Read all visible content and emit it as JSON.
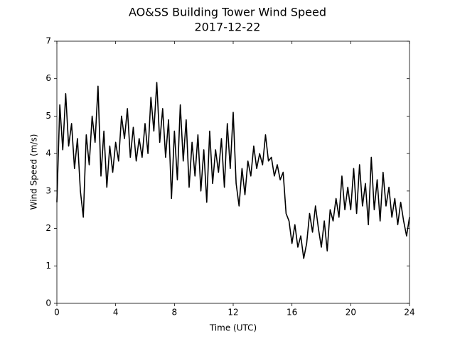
{
  "chart_data": {
    "type": "line",
    "title": "AO&SS Building Tower Wind Speed",
    "subtitle": "2017-12-22",
    "x_label": "Time (UTC)",
    "y_label": "Wind Speed (m/s)",
    "xlim": [
      0,
      24
    ],
    "xticks": [
      0,
      4,
      8,
      12,
      16,
      20,
      24
    ],
    "ylim": [
      0,
      7
    ],
    "yticks": [
      0,
      1,
      2,
      3,
      4,
      5,
      6,
      7
    ],
    "grid": false,
    "x": [
      0,
      0.2,
      0.4,
      0.6,
      0.8,
      1,
      1.2,
      1.4,
      1.6,
      1.8,
      2,
      2.2,
      2.4,
      2.6,
      2.8,
      3,
      3.2,
      3.4,
      3.6,
      3.8,
      4,
      4.2,
      4.4,
      4.6,
      4.8,
      5,
      5.2,
      5.4,
      5.6,
      5.8,
      6,
      6.2,
      6.4,
      6.6,
      6.8,
      7,
      7.2,
      7.4,
      7.6,
      7.8,
      8,
      8.2,
      8.4,
      8.6,
      8.8,
      9,
      9.2,
      9.4,
      9.6,
      9.8,
      10,
      10.2,
      10.4,
      10.6,
      10.8,
      11,
      11.2,
      11.4,
      11.6,
      11.8,
      12,
      12.2,
      12.4,
      12.6,
      12.8,
      13,
      13.2,
      13.4,
      13.6,
      13.8,
      14,
      14.2,
      14.4,
      14.6,
      14.8,
      15,
      15.2,
      15.4,
      15.6,
      15.8,
      16,
      16.2,
      16.4,
      16.6,
      16.8,
      17,
      17.2,
      17.4,
      17.6,
      17.8,
      18,
      18.2,
      18.4,
      18.6,
      18.8,
      19,
      19.2,
      19.4,
      19.6,
      19.8,
      20,
      20.2,
      20.4,
      20.6,
      20.8,
      21,
      21.2,
      21.4,
      21.6,
      21.8,
      22,
      22.2,
      22.4,
      22.6,
      22.8,
      23,
      23.2,
      23.4,
      23.6,
      23.8,
      24
    ],
    "series": [
      {
        "color": "#000000",
        "values": [
          2.7,
          5.3,
          4.1,
          5.6,
          4.2,
          4.8,
          3.6,
          4.4,
          3.0,
          2.3,
          4.5,
          3.7,
          5.0,
          4.3,
          5.8,
          3.4,
          4.6,
          3.1,
          4.2,
          3.5,
          4.3,
          3.8,
          5.0,
          4.4,
          5.2,
          3.9,
          4.7,
          3.8,
          4.4,
          3.9,
          4.8,
          4.0,
          5.5,
          4.6,
          5.9,
          4.3,
          5.2,
          3.9,
          4.9,
          2.8,
          4.6,
          3.3,
          5.3,
          3.8,
          4.9,
          3.1,
          4.3,
          3.4,
          4.5,
          3.0,
          4.1,
          2.7,
          4.6,
          3.2,
          4.1,
          3.5,
          4.4,
          3.1,
          4.8,
          3.6,
          5.1,
          3.2,
          2.6,
          3.6,
          2.9,
          3.8,
          3.4,
          4.2,
          3.6,
          4.0,
          3.7,
          4.5,
          3.8,
          3.9,
          3.4,
          3.7,
          3.3,
          3.5,
          2.4,
          2.2,
          1.6,
          2.1,
          1.5,
          1.8,
          1.2,
          1.6,
          2.4,
          1.9,
          2.6,
          2.0,
          1.5,
          2.2,
          1.4,
          2.5,
          2.2,
          2.8,
          2.3,
          3.4,
          2.5,
          3.1,
          2.5,
          3.6,
          2.4,
          3.7,
          2.6,
          3.2,
          2.1,
          3.9,
          2.5,
          3.3,
          2.2,
          3.5,
          2.6,
          3.1,
          2.3,
          2.8,
          2.1,
          2.7,
          2.2,
          1.8,
          2.3
        ]
      }
    ]
  }
}
